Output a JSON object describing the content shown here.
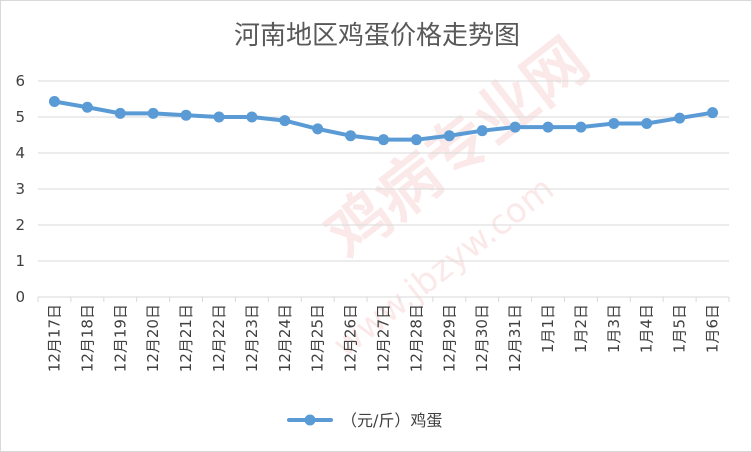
{
  "chart_data": {
    "type": "line",
    "title": "河南地区鸡蛋价格走势图",
    "categories": [
      "12月17日",
      "12月18日",
      "12月19日",
      "12月20日",
      "12月21日",
      "12月22日",
      "12月23日",
      "12月24日",
      "12月25日",
      "12月26日",
      "12月27日",
      "12月28日",
      "12月29日",
      "12月30日",
      "12月31日",
      "1月1日",
      "1月2日",
      "1月3日",
      "1月4日",
      "1月5日",
      "1月6日"
    ],
    "series": [
      {
        "name": "（元/斤）鸡蛋",
        "values": [
          5.43,
          5.27,
          5.1,
          5.1,
          5.05,
          5.0,
          5.0,
          4.9,
          4.67,
          4.48,
          4.37,
          4.37,
          4.48,
          4.62,
          4.72,
          4.72,
          4.72,
          4.82,
          4.82,
          4.97,
          5.12
        ]
      }
    ],
    "yticks": [
      "0",
      "1",
      "2",
      "3",
      "4",
      "5",
      "6"
    ],
    "ylim": [
      0,
      6
    ],
    "grid": true,
    "legend_position": "bottom",
    "colors": {
      "series": "#5b9bd5",
      "grid": "#d9d9d9",
      "text": "#404040"
    }
  },
  "watermark": {
    "brand": "鸡病专业网",
    "url": "www.jbzyw.com"
  }
}
